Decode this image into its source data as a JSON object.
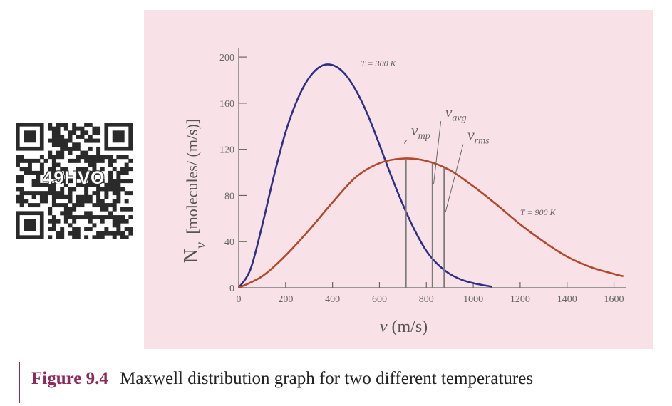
{
  "qr": {
    "code_text": "49HVO"
  },
  "caption": {
    "label": "Figure 9.4",
    "text": "Maxwell distribution graph for two different temperatures"
  },
  "chart_data": {
    "type": "line",
    "xlabel": "v (m/s)",
    "ylabel": "N_v [molecules/ (m/s)]",
    "xlim": [
      0,
      1650
    ],
    "ylim": [
      0,
      205
    ],
    "xticks": [
      0,
      200,
      400,
      600,
      800,
      1000,
      1200,
      1400,
      1600
    ],
    "yticks": [
      0,
      40,
      80,
      120,
      160,
      200
    ],
    "series": [
      {
        "name": "T = 300 K",
        "color": "#2e2f86",
        "x": [
          0,
          50,
          100,
          150,
          200,
          250,
          300,
          350,
          400,
          450,
          500,
          550,
          600,
          650,
          700,
          750,
          800,
          850,
          900,
          950,
          1000,
          1050,
          1080
        ],
        "y": [
          0,
          16,
          54,
          97,
          135,
          163,
          182,
          192,
          193,
          186,
          171,
          150,
          124,
          97,
          72,
          50,
          32,
          20,
          12,
          7,
          4,
          2,
          1
        ]
      },
      {
        "name": "T = 900 K",
        "color": "#b5472a",
        "x": [
          0,
          100,
          200,
          300,
          400,
          500,
          600,
          700,
          800,
          900,
          1000,
          1100,
          1200,
          1300,
          1400,
          1500,
          1600,
          1640
        ],
        "y": [
          0,
          10,
          28,
          50,
          74,
          96,
          108,
          112,
          110,
          102,
          88,
          72,
          55,
          40,
          27,
          18,
          12,
          10
        ]
      }
    ],
    "annotations": [
      {
        "text": "T = 300 K",
        "x": 520,
        "y": 192
      },
      {
        "text": "T = 900 K",
        "x": 1200,
        "y": 63
      }
    ],
    "markers": [
      {
        "name": "v_mp",
        "main": "v",
        "sub": "mp",
        "x": 713,
        "label_x": 735,
        "label_y": 132,
        "pointer": [
          700,
          125
        ]
      },
      {
        "name": "v_avg",
        "main": "v",
        "sub": "avg",
        "x": 826,
        "label_x": 880,
        "label_y": 148,
        "pointer": [
          825,
          90
        ]
      },
      {
        "name": "v_rms",
        "main": "v",
        "sub": "rms",
        "x": 876,
        "label_x": 975,
        "label_y": 128,
        "pointer": [
          876,
          66
        ]
      }
    ]
  }
}
